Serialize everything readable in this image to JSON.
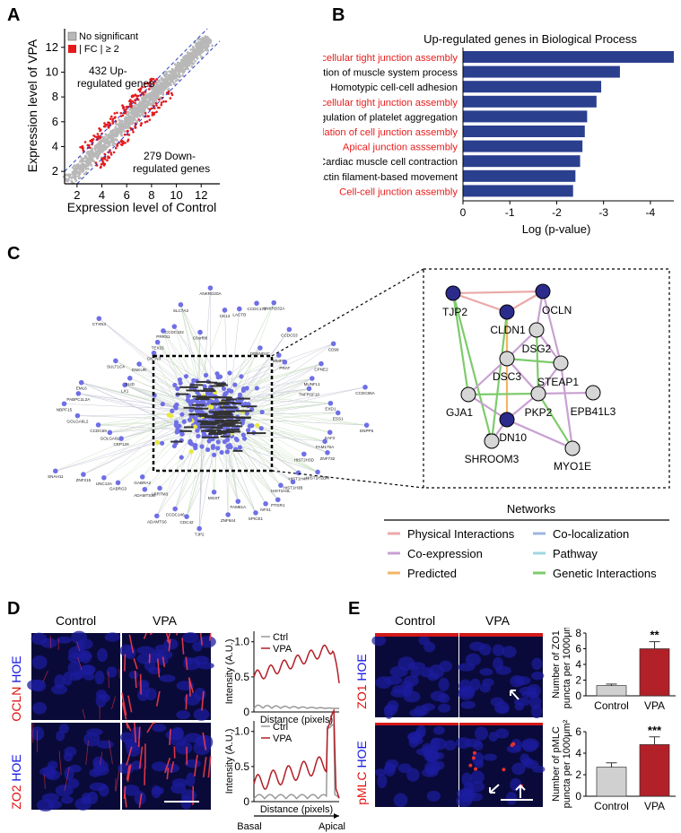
{
  "panel_letters": {
    "a": "A",
    "b": "B",
    "c": "C",
    "d": "D",
    "e": "E"
  },
  "panelA": {
    "xlabel": "Expression level of Control",
    "ylabel": "Expression level of VPA",
    "legend_ns": "No significant",
    "legend_fc": "FC",
    "legend_fc_rest": "≥ 2",
    "up_text_1": "432 Up-",
    "up_text_2": "regulated genes",
    "down_text_1": "279 Down-",
    "down_text_2": "regulated genes",
    "xticks": [
      "2",
      "4",
      "6",
      "8",
      "10",
      "12"
    ],
    "yticks": [
      "2",
      "4",
      "6",
      "8",
      "10",
      "12"
    ],
    "colors": {
      "ns": "#b8b8b8",
      "sig": "#e41a1c",
      "line": "#2a3cc8"
    }
  },
  "panelB": {
    "title": "Up-regulated genes in Biological Process",
    "xlabel": "Log (p-value)",
    "xticks": [
      "0",
      "-1",
      "-2",
      "-3",
      "-4"
    ],
    "bar_color": "#2b3f8f"
  },
  "chart_data": {
    "type": "bar",
    "title": "Up-regulated genes in Biological Process",
    "xlabel": "Log (p-value)",
    "xlim": [
      0,
      -4.5
    ],
    "categories": [
      "Regulation of bicellular tight junction assembly",
      "Regulation of muscle system process",
      "Homotypic cell-cell adhesion",
      "Bicellular tight junction assembly",
      "Regulation of platelet aggregation",
      "Regulation of cell junction assembly",
      "Apical junction asssembly",
      "Cardiac muscle cell contraction",
      "Actin filament-based movement",
      "Cell-cell junction assembly"
    ],
    "values": [
      -4.5,
      -3.35,
      -2.95,
      -2.85,
      -2.65,
      -2.6,
      -2.55,
      -2.5,
      -2.4,
      -2.35
    ],
    "highlighted": [
      true,
      false,
      false,
      true,
      false,
      true,
      true,
      false,
      false,
      true
    ]
  },
  "panelC": {
    "nodes": [
      {
        "id": "TJP2",
        "dark": true
      },
      {
        "id": "OCLN",
        "dark": true
      },
      {
        "id": "CLDN1",
        "dark": true
      },
      {
        "id": "DSG2",
        "dark": false
      },
      {
        "id": "DSC3",
        "dark": false
      },
      {
        "id": "STEAP1",
        "dark": false
      },
      {
        "id": "GJA1",
        "dark": false
      },
      {
        "id": "PKP2",
        "dark": false
      },
      {
        "id": "EPB41L3",
        "dark": false
      },
      {
        "id": "CLDN10",
        "dark": true
      },
      {
        "id": "SHROOM3",
        "dark": false
      },
      {
        "id": "MYO1E",
        "dark": false
      }
    ],
    "network_labels": [
      "FAM175A",
      "ZNF732",
      "HIST2H3D",
      "HIST1H2BM",
      "HIST1H4H",
      "HIST1H3B",
      "HIST1H4L",
      "PTGR1",
      "NFS1",
      "SPICE1",
      "FAM81A",
      "ZNF844",
      "MGST",
      "TJP2",
      "CDC42",
      "CCDC146",
      "ADAMTS6",
      "LRRTM3",
      "ADAMTS20",
      "GABRA2",
      "GABRG3",
      "UNC13A",
      "ZNF215",
      "SNAH11",
      "CEP126",
      "GOLGA6L",
      "CCDC69",
      "GOLGA6L2",
      "NBPF15",
      "PABPC1L2A",
      "EML6",
      "LX1",
      "BLID",
      "SULT1C4",
      "ENKUR",
      "CTXN3",
      "CNTN3",
      "TEX15",
      "PRRS1",
      "CCDC102",
      "SLC7A3",
      "C8orf88",
      "ANKRD20A",
      "CK13",
      "LACTB",
      "CCDC173",
      "ANKRD32A",
      "DENND2C",
      "CCDC53",
      "MMP7",
      "PRAT",
      "CD99",
      "CPNE2",
      "MUNFL1",
      "TNFRSF10",
      "CCDC85A",
      "EXD1",
      "ESS1",
      "ENPP5",
      "EAF2"
    ],
    "legend_title": "Networks",
    "legend": [
      {
        "label": "Physical Interactions",
        "color": "#eba9a9"
      },
      {
        "label": "Co-localization",
        "color": "#9fb4e0"
      },
      {
        "label": "Co-expression",
        "color": "#c9a1d2"
      },
      {
        "label": "Pathway",
        "color": "#9fd8e0"
      },
      {
        "label": "Predicted",
        "color": "#f3b566"
      },
      {
        "label": "Genetic Interactions",
        "color": "#7ecb6c"
      }
    ]
  },
  "panelD": {
    "col_control": "Control",
    "col_vpa": "VPA",
    "row1_red": "OCLN",
    "row1_blue": "HOE",
    "row2_red": "ZO2",
    "row2_blue": "HOE",
    "plot_ylabel": "Intensity (A.U.)",
    "plot_xlabel": "Distance (pixels)",
    "legend_ctrl": "Ctrl",
    "legend_vpa": "VPA",
    "yticks": [
      "0",
      "0.5",
      "1.0"
    ],
    "basal": "Basal",
    "apical": "Apical"
  },
  "panelE": {
    "col_control": "Control",
    "col_vpa": "VPA",
    "row1_red": "ZO1",
    "row1_blue": "HOE",
    "row2_red": "pMLC",
    "row2_blue": "HOE",
    "bar1_ylabel_1": "Number of ZO1",
    "bar1_ylabel_2": "puncta per 1000μm²",
    "bar1_yticks": [
      "0",
      "2",
      "4",
      "6",
      "8"
    ],
    "bar1_sig": "**",
    "bar1_values": [
      1.3,
      6.0
    ],
    "bar2_ylabel_1": "Number of pMLC",
    "bar2_ylabel_2": "puncta per 1000μm²",
    "bar2_yticks": [
      "0",
      "2",
      "4",
      "6"
    ],
    "bar2_sig": "***",
    "bar2_values": [
      2.7,
      4.8
    ],
    "categories": [
      "Control",
      "VPA"
    ],
    "ctrl_color": "#d0d0d0",
    "vpa_color": "#b22028"
  }
}
